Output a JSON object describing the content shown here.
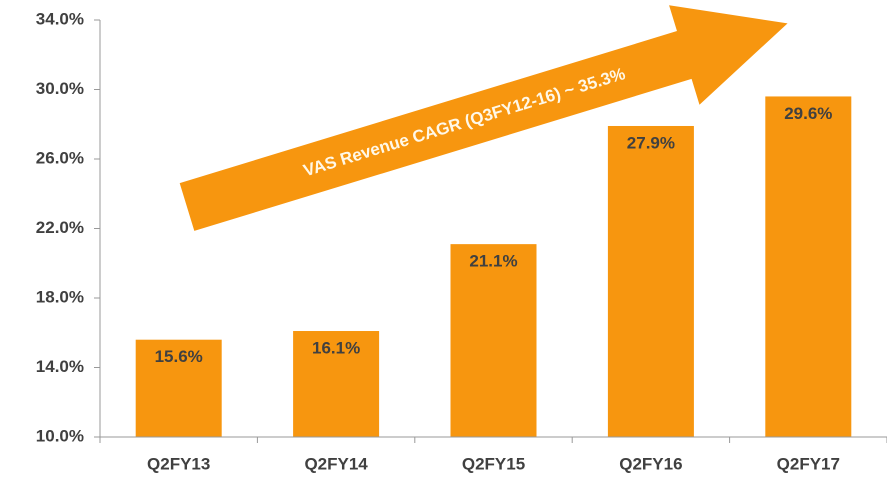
{
  "chart_data": {
    "type": "bar",
    "categories": [
      "Q2FY13",
      "Q2FY14",
      "Q2FY15",
      "Q2FY16",
      "Q2FY17"
    ],
    "values": [
      15.6,
      16.1,
      21.1,
      27.9,
      29.6
    ],
    "value_labels": [
      "15.6%",
      "16.1%",
      "21.1%",
      "27.9%",
      "29.6%"
    ],
    "color": "#f7960f",
    "ylim": [
      10,
      34
    ],
    "yticks": [
      {
        "value": 10,
        "label": "10.0%"
      },
      {
        "value": 14,
        "label": "14.0%"
      },
      {
        "value": 18,
        "label": "18.0%"
      },
      {
        "value": 22,
        "label": "22.0%"
      },
      {
        "value": 26,
        "label": "26.0%"
      },
      {
        "value": 30,
        "label": "30.0%"
      },
      {
        "value": 34,
        "label": "34.0%"
      }
    ],
    "annotation": "VAS Revenue CAGR (Q3FY12-16) ~ 35.3%"
  }
}
